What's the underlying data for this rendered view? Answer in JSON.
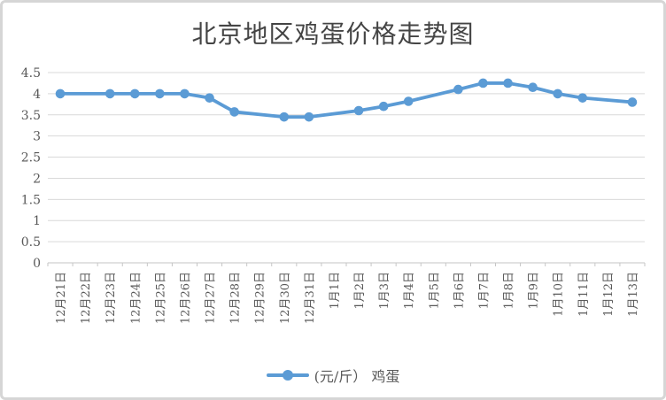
{
  "title": "北京地区鸡蛋价格走势图",
  "legend": {
    "series_label": "(元/斤） 鸡蛋"
  },
  "chart_data": {
    "type": "line",
    "title": "北京地区鸡蛋价格走势图",
    "categories": [
      "12月21日",
      "12月22日",
      "12月23日",
      "12月24日",
      "12月25日",
      "12月26日",
      "12月27日",
      "12月28日",
      "12月29日",
      "12月30日",
      "12月31日",
      "1月1日",
      "1月2日",
      "1月3日",
      "1月4日",
      "1月5日",
      "1月6日",
      "1月7日",
      "1月8日",
      "1月9日",
      "1月10日",
      "1月11日",
      "1月12日",
      "1月13日"
    ],
    "series": [
      {
        "name": "(元/斤） 鸡蛋",
        "values": [
          4.0,
          null,
          4.0,
          4.0,
          4.0,
          4.0,
          3.9,
          3.57,
          null,
          3.45,
          3.45,
          null,
          3.6,
          3.7,
          3.82,
          null,
          4.1,
          4.25,
          4.25,
          4.15,
          4.0,
          3.9,
          null,
          3.8
        ]
      }
    ],
    "xlabel": "",
    "ylabel": "",
    "ylim": [
      0,
      4.5
    ],
    "y_ticks": [
      0,
      0.5,
      1,
      1.5,
      2,
      2.5,
      3,
      3.5,
      4,
      4.5
    ],
    "y_tick_labels": [
      "0",
      "0.5",
      "1",
      "1.5",
      "2",
      "2.5",
      "3",
      "3.5",
      "4",
      "4.5"
    ],
    "grid": true,
    "legend_position": "bottom",
    "x_label_rotation_degrees": 90,
    "colors": {
      "line": "#5b9bd5",
      "marker": "#5b9bd5",
      "gridline": "#d9d9d9",
      "axis": "#c6c6c6",
      "tick_text": "#595959",
      "title_text": "#444444",
      "frame_border": "#d6d6d6"
    }
  }
}
